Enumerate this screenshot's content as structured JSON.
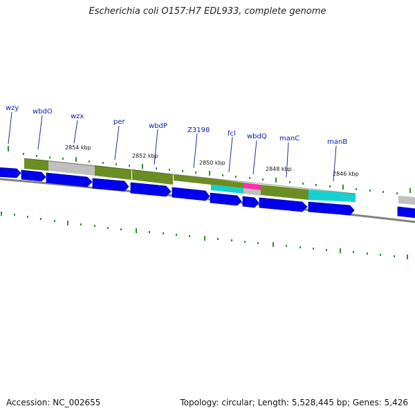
{
  "header": {
    "title": "Escherichia coli O157:H7 EDL933, complete genome"
  },
  "footer": {
    "accession": "Accession: NC_002655",
    "summary": "Topology: circular; Length: 5,528,445 bp; Genes: 5,426"
  },
  "map": {
    "gene_labels": [
      "wzy",
      "wbdO",
      "wzx",
      "per",
      "wbdP",
      "Z3198",
      "fcl",
      "wbdQ",
      "manC",
      "manB"
    ],
    "position_labels": [
      "2854 kbp",
      "2852 kbp",
      "2850 kbp",
      "2848 kbp",
      "2846 kbp"
    ]
  },
  "colors": {
    "label": "#0a1ab4",
    "gene_arrow": "#0000ee",
    "cog_olive": "#6b8e23",
    "cog_gray": "#c0c0c0",
    "cog_cyan": "#16d0d0",
    "cog_pink": "#ff2fa8",
    "tick": "#2f8f2f",
    "backbone": "#808080"
  }
}
